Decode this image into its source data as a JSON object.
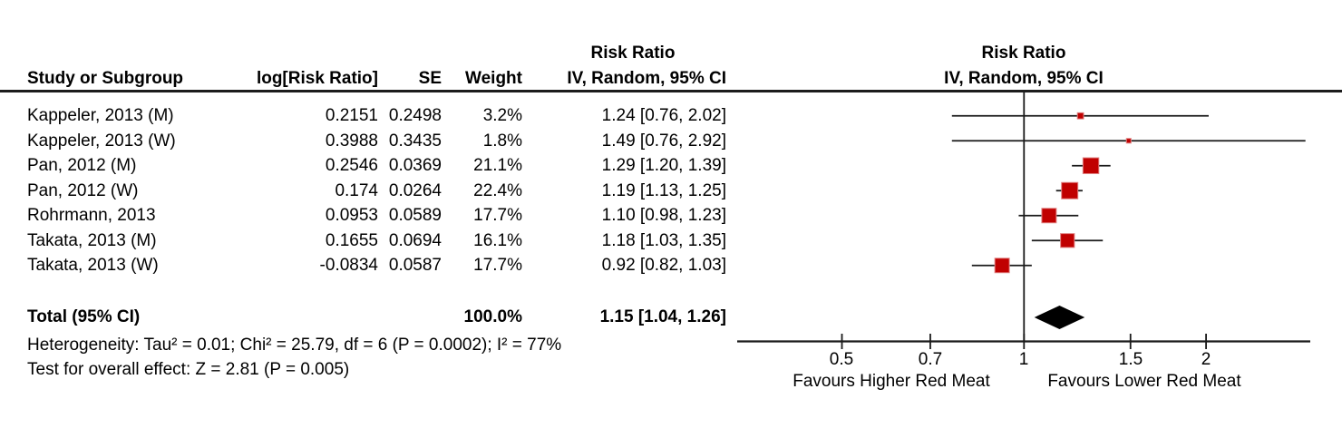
{
  "table_header": {
    "study": "Study or Subgroup",
    "log_rr": "log[Risk Ratio]",
    "se": "SE",
    "weight": "Weight",
    "effect": "Risk Ratio",
    "method": "IV, Random, 95% CI"
  },
  "plot_header": {
    "effect": "Risk Ratio",
    "method": "IV, Random, 95% CI"
  },
  "chart_data": {
    "type": "forest",
    "effect_measure": "Risk Ratio",
    "model": "IV, Random, 95% CI",
    "x_scale": "log",
    "x_ticks": [
      0.5,
      0.7,
      1,
      1.5,
      2
    ],
    "x_tick_labels": [
      "0.5",
      "0.7",
      "1",
      "1.5",
      "2"
    ],
    "x_range": [
      0.34,
      3.0
    ],
    "favours_left": "Favours Higher Red Meat",
    "favours_right": "Favours Lower Red Meat",
    "studies": [
      {
        "name": "Kappeler, 2013 (M)",
        "log_rr": "0.2151",
        "se": "0.2498",
        "weight": "3.2%",
        "weight_pct": 3.2,
        "rr": 1.24,
        "lo": 0.76,
        "hi": 2.02,
        "ci_label": "1.24 [0.76, 2.02]"
      },
      {
        "name": "Kappeler, 2013 (W)",
        "log_rr": "0.3988",
        "se": "0.3435",
        "weight": "1.8%",
        "weight_pct": 1.8,
        "rr": 1.49,
        "lo": 0.76,
        "hi": 2.92,
        "ci_label": "1.49 [0.76, 2.92]"
      },
      {
        "name": "Pan, 2012 (M)",
        "log_rr": "0.2546",
        "se": "0.0369",
        "weight": "21.1%",
        "weight_pct": 21.1,
        "rr": 1.29,
        "lo": 1.2,
        "hi": 1.39,
        "ci_label": "1.29 [1.20, 1.39]"
      },
      {
        "name": "Pan, 2012 (W)",
        "log_rr": "0.174",
        "se": "0.0264",
        "weight": "22.4%",
        "weight_pct": 22.4,
        "rr": 1.19,
        "lo": 1.13,
        "hi": 1.25,
        "ci_label": "1.19 [1.13, 1.25]"
      },
      {
        "name": "Rohrmann, 2013",
        "log_rr": "0.0953",
        "se": "0.0589",
        "weight": "17.7%",
        "weight_pct": 17.7,
        "rr": 1.1,
        "lo": 0.98,
        "hi": 1.23,
        "ci_label": "1.10 [0.98, 1.23]"
      },
      {
        "name": "Takata, 2013 (M)",
        "log_rr": "0.1655",
        "se": "0.0694",
        "weight": "16.1%",
        "weight_pct": 16.1,
        "rr": 1.18,
        "lo": 1.03,
        "hi": 1.35,
        "ci_label": "1.18 [1.03, 1.35]"
      },
      {
        "name": "Takata, 2013 (W)",
        "log_rr": "-0.0834",
        "se": "0.0587",
        "weight": "17.7%",
        "weight_pct": 17.7,
        "rr": 0.92,
        "lo": 0.82,
        "hi": 1.03,
        "ci_label": "0.92 [0.82, 1.03]"
      }
    ],
    "total": {
      "name": "Total (95% CI)",
      "weight": "100.0%",
      "rr": 1.15,
      "lo": 1.04,
      "hi": 1.26,
      "ci_label": "1.15 [1.04, 1.26]"
    },
    "footnotes": {
      "heterogeneity": "Heterogeneity: Tau² = 0.01; Chi² = 25.79, df = 6 (P = 0.0002); I² = 77%",
      "overall_effect": "Test for overall effect: Z = 2.81 (P = 0.005)"
    },
    "colors": {
      "marker_fill": "#c00000",
      "marker_edge": "#e08080",
      "line": "#1a1a1a",
      "diamond": "#000000"
    }
  }
}
